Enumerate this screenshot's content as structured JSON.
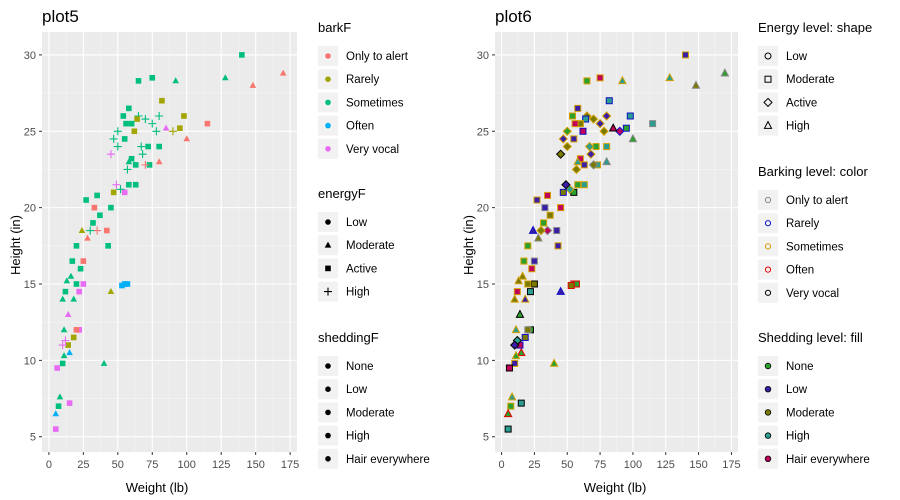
{
  "colors": {
    "panel_bg": "#ebebeb",
    "grid_major": "#ffffff",
    "bark": [
      "#F8766D",
      "#A3A500",
      "#00BF7D",
      "#00B0F6",
      "#E76BF3"
    ],
    "p2_stroke": [
      "#888888",
      "#1010c8",
      "#d4a000",
      "#e00000",
      "#000000"
    ],
    "p2_fill": [
      "#2ca02c",
      "#3a1ea8",
      "#7a7a00",
      "#2a9d8f",
      "#c0005a"
    ]
  },
  "chart_data": [
    {
      "type": "scatter",
      "title": "plot5",
      "xlabel": "Weight (lb)",
      "ylabel": "Height (in)",
      "xlim": [
        -5,
        180
      ],
      "ylim": [
        4,
        31.5
      ],
      "xticks": [
        0,
        25,
        50,
        75,
        100,
        125,
        150,
        175
      ],
      "yticks": [
        5,
        10,
        15,
        20,
        25,
        30
      ],
      "legends": [
        {
          "title": "barkF",
          "key": "color",
          "items": [
            "Only to alert",
            "Rarely",
            "Sometimes",
            "Often",
            "Very vocal"
          ]
        },
        {
          "title": "energyF",
          "key": "shape",
          "items": [
            "Low",
            "Moderate",
            "Active",
            "High"
          ]
        },
        {
          "title": "sheddingF",
          "key": "none",
          "items": [
            "None",
            "Low",
            "Moderate",
            "High",
            "Hair everywhere"
          ]
        }
      ],
      "points": [
        {
          "x": 170,
          "y": 28.8,
          "bark": 0,
          "energy": 1
        },
        {
          "x": 148,
          "y": 28.0,
          "bark": 0,
          "energy": 1
        },
        {
          "x": 140,
          "y": 30.0,
          "bark": 2,
          "energy": 2
        },
        {
          "x": 128,
          "y": 28.5,
          "bark": 2,
          "energy": 1
        },
        {
          "x": 115,
          "y": 25.5,
          "bark": 0,
          "energy": 2
        },
        {
          "x": 100,
          "y": 24.5,
          "bark": 0,
          "energy": 1
        },
        {
          "x": 98,
          "y": 26.0,
          "bark": 1,
          "energy": 2
        },
        {
          "x": 95,
          "y": 25.2,
          "bark": 1,
          "energy": 2
        },
        {
          "x": 92,
          "y": 28.3,
          "bark": 2,
          "energy": 1
        },
        {
          "x": 90,
          "y": 25.0,
          "bark": 1,
          "energy": 3
        },
        {
          "x": 85,
          "y": 25.2,
          "bark": 4,
          "energy": 1
        },
        {
          "x": 82,
          "y": 27.0,
          "bark": 1,
          "energy": 2
        },
        {
          "x": 80,
          "y": 26.0,
          "bark": 2,
          "energy": 3
        },
        {
          "x": 80,
          "y": 24.0,
          "bark": 2,
          "energy": 2
        },
        {
          "x": 80,
          "y": 23.0,
          "bark": 0,
          "energy": 1
        },
        {
          "x": 78,
          "y": 25.0,
          "bark": 2,
          "energy": 3
        },
        {
          "x": 75,
          "y": 28.5,
          "bark": 2,
          "energy": 2
        },
        {
          "x": 75,
          "y": 25.5,
          "bark": 2,
          "energy": 3
        },
        {
          "x": 73,
          "y": 22.8,
          "bark": 2,
          "energy": 2
        },
        {
          "x": 72,
          "y": 24.0,
          "bark": 2,
          "energy": 2
        },
        {
          "x": 70,
          "y": 25.8,
          "bark": 2,
          "energy": 3
        },
        {
          "x": 70,
          "y": 22.8,
          "bark": 0,
          "energy": 3
        },
        {
          "x": 68,
          "y": 23.5,
          "bark": 2,
          "energy": 3
        },
        {
          "x": 67,
          "y": 24.0,
          "bark": 2,
          "energy": 3
        },
        {
          "x": 65,
          "y": 28.3,
          "bark": 2,
          "energy": 2
        },
        {
          "x": 65,
          "y": 26.0,
          "bark": 2,
          "energy": 3
        },
        {
          "x": 64,
          "y": 25.8,
          "bark": 1,
          "energy": 2
        },
        {
          "x": 63,
          "y": 22.8,
          "bark": 2,
          "energy": 2
        },
        {
          "x": 63,
          "y": 21.5,
          "bark": 2,
          "energy": 2
        },
        {
          "x": 62,
          "y": 25.0,
          "bark": 1,
          "energy": 2
        },
        {
          "x": 60,
          "y": 25.5,
          "bark": 2,
          "energy": 2
        },
        {
          "x": 60,
          "y": 23.2,
          "bark": 2,
          "energy": 2
        },
        {
          "x": 58,
          "y": 26.5,
          "bark": 2,
          "energy": 2
        },
        {
          "x": 58,
          "y": 23.0,
          "bark": 2,
          "energy": 1
        },
        {
          "x": 58,
          "y": 21.5,
          "bark": 2,
          "energy": 2
        },
        {
          "x": 57,
          "y": 22.5,
          "bark": 2,
          "energy": 3
        },
        {
          "x": 56,
          "y": 25.5,
          "bark": 2,
          "energy": 2
        },
        {
          "x": 55,
          "y": 24.5,
          "bark": 2,
          "energy": 2
        },
        {
          "x": 55,
          "y": 21.0,
          "bark": 4,
          "energy": 2
        },
        {
          "x": 54,
          "y": 26.0,
          "bark": 2,
          "energy": 2
        },
        {
          "x": 55,
          "y": 15.0,
          "bark": 3,
          "energy": 2
        },
        {
          "x": 57,
          "y": 15.0,
          "bark": 3,
          "energy": 2
        },
        {
          "x": 53,
          "y": 14.9,
          "bark": 3,
          "energy": 2
        },
        {
          "x": 52,
          "y": 21.2,
          "bark": 2,
          "energy": 3
        },
        {
          "x": 50,
          "y": 25.0,
          "bark": 2,
          "energy": 3
        },
        {
          "x": 50,
          "y": 24.0,
          "bark": 2,
          "energy": 3
        },
        {
          "x": 49,
          "y": 21.5,
          "bark": 4,
          "energy": 3
        },
        {
          "x": 47,
          "y": 24.5,
          "bark": 2,
          "energy": 3
        },
        {
          "x": 47,
          "y": 21.0,
          "bark": 1,
          "energy": 2
        },
        {
          "x": 45,
          "y": 23.5,
          "bark": 4,
          "energy": 3
        },
        {
          "x": 45,
          "y": 14.5,
          "bark": 1,
          "energy": 1
        },
        {
          "x": 45,
          "y": 20.0,
          "bark": 2,
          "energy": 2
        },
        {
          "x": 43,
          "y": 17.5,
          "bark": 2,
          "energy": 2
        },
        {
          "x": 42,
          "y": 18.5,
          "bark": 0,
          "energy": 2
        },
        {
          "x": 40,
          "y": 9.8,
          "bark": 2,
          "energy": 1
        },
        {
          "x": 37,
          "y": 19.5,
          "bark": 2,
          "energy": 2
        },
        {
          "x": 35,
          "y": 20.8,
          "bark": 2,
          "energy": 2
        },
        {
          "x": 35,
          "y": 18.5,
          "bark": 0,
          "energy": 3
        },
        {
          "x": 33,
          "y": 20.0,
          "bark": 0,
          "energy": 2
        },
        {
          "x": 32,
          "y": 19.0,
          "bark": 2,
          "energy": 2
        },
        {
          "x": 30,
          "y": 18.5,
          "bark": 2,
          "energy": 3
        },
        {
          "x": 28,
          "y": 18.0,
          "bark": 0,
          "energy": 1
        },
        {
          "x": 27,
          "y": 20.5,
          "bark": 2,
          "energy": 2
        },
        {
          "x": 25,
          "y": 16.5,
          "bark": 0,
          "energy": 2
        },
        {
          "x": 25,
          "y": 15.0,
          "bark": 4,
          "energy": 2
        },
        {
          "x": 24,
          "y": 18.5,
          "bark": 1,
          "energy": 1
        },
        {
          "x": 23,
          "y": 16.0,
          "bark": 2,
          "energy": 2
        },
        {
          "x": 22,
          "y": 14.5,
          "bark": 4,
          "energy": 2
        },
        {
          "x": 22,
          "y": 12.0,
          "bark": 4,
          "energy": 2
        },
        {
          "x": 20,
          "y": 17.5,
          "bark": 2,
          "energy": 2
        },
        {
          "x": 20,
          "y": 15.0,
          "bark": 2,
          "energy": 2
        },
        {
          "x": 20,
          "y": 12.0,
          "bark": 0,
          "energy": 2
        },
        {
          "x": 18,
          "y": 14.0,
          "bark": 2,
          "energy": 1
        },
        {
          "x": 18,
          "y": 11.5,
          "bark": 1,
          "energy": 2
        },
        {
          "x": 17,
          "y": 16.5,
          "bark": 2,
          "energy": 2
        },
        {
          "x": 16,
          "y": 15.5,
          "bark": 2,
          "energy": 1
        },
        {
          "x": 15,
          "y": 10.5,
          "bark": 3,
          "energy": 1
        },
        {
          "x": 15,
          "y": 7.2,
          "bark": 4,
          "energy": 2
        },
        {
          "x": 14,
          "y": 13.0,
          "bark": 4,
          "energy": 1
        },
        {
          "x": 14,
          "y": 11.0,
          "bark": 1,
          "energy": 2
        },
        {
          "x": 13,
          "y": 15.2,
          "bark": 2,
          "energy": 1
        },
        {
          "x": 12,
          "y": 14.5,
          "bark": 2,
          "energy": 2
        },
        {
          "x": 12,
          "y": 11.3,
          "bark": 4,
          "energy": 3
        },
        {
          "x": 11,
          "y": 12.0,
          "bark": 2,
          "energy": 1
        },
        {
          "x": 11,
          "y": 10.3,
          "bark": 2,
          "energy": 1
        },
        {
          "x": 10,
          "y": 14.0,
          "bark": 2,
          "energy": 1
        },
        {
          "x": 10,
          "y": 11.0,
          "bark": 4,
          "energy": 3
        },
        {
          "x": 10,
          "y": 9.8,
          "bark": 2,
          "energy": 2
        },
        {
          "x": 8,
          "y": 7.6,
          "bark": 2,
          "energy": 1
        },
        {
          "x": 7,
          "y": 7.0,
          "bark": 2,
          "energy": 2
        },
        {
          "x": 6,
          "y": 9.5,
          "bark": 4,
          "energy": 2
        },
        {
          "x": 5,
          "y": 6.5,
          "bark": 3,
          "energy": 1
        },
        {
          "x": 5,
          "y": 5.5,
          "bark": 4,
          "energy": 2
        }
      ]
    },
    {
      "type": "scatter",
      "title": "plot6",
      "xlabel": "Weight (lb)",
      "ylabel": "Height (in)",
      "xlim": [
        -5,
        180
      ],
      "ylim": [
        4,
        31.5
      ],
      "xticks": [
        0,
        25,
        50,
        75,
        100,
        125,
        150,
        175
      ],
      "yticks": [
        5,
        10,
        15,
        20,
        25,
        30
      ],
      "legends": [
        {
          "title": "Energy level: shape",
          "key": "shape",
          "items": [
            "Low",
            "Moderate",
            "Active",
            "High"
          ]
        },
        {
          "title": "Barking level: color",
          "key": "color",
          "items": [
            "Only to alert",
            "Rarely",
            "Sometimes",
            "Often",
            "Very vocal"
          ]
        },
        {
          "title": "Shedding level: fill",
          "key": "fill",
          "items": [
            "None",
            "Low",
            "Moderate",
            "High",
            "Hair everywhere"
          ]
        }
      ]
    }
  ]
}
